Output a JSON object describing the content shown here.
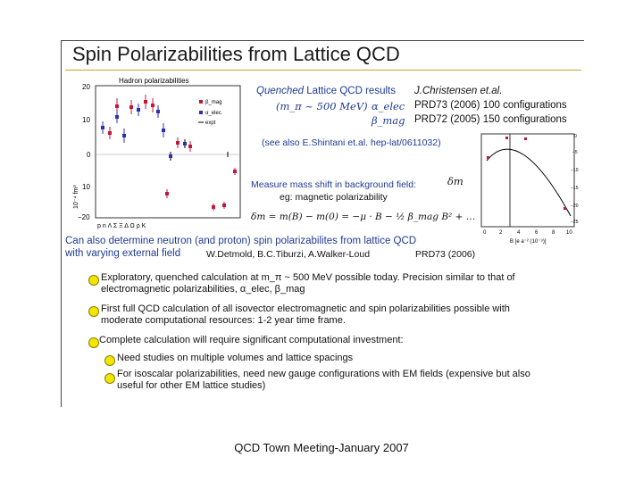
{
  "slide": {
    "title": "Spin Polarizabilities from Lattice QCD",
    "footer": "QCD Town Meeting-January 2007"
  },
  "left_chart": {
    "title": "Hadron polarizabilities",
    "y_axis_label": "10⁻⁴ fm³",
    "y_ticks": [
      "20",
      "10",
      "0",
      "10",
      "−20"
    ],
    "x_tick_text": "p  n  Λ  Σ  Ξ  Δ  Ω  ρ  K",
    "legend": [
      "β_mag",
      "α_elec",
      "expt"
    ]
  },
  "quenched": {
    "heading_italic": "Quenched",
    "heading_rest": " Lattice QCD results",
    "mass": "(m_π ~ 500 MeV)",
    "alpha": "α_elec",
    "beta": "β_mag",
    "ref1": "J.Christensen et.al.",
    "ref2": "PRD73 (2006) 100 configurations",
    "ref3": "PRD72 (2005) 150 configurations",
    "see_also": "(see also E.Shintani et.al. hep-lat/0611032)"
  },
  "background_field": {
    "line1": "Measure mass shift in background field:",
    "line2": "eg: magnetic polarizability",
    "equation": "δm = m(B) − m(0) = −μ · B − ½ β_mag B² + …",
    "delta_m": "δm"
  },
  "right_chart": {
    "x_label": "B [e a⁻² (10⁻⁹)]",
    "x_ticks": [
      "0",
      "2",
      "4",
      "6",
      "8",
      "10"
    ],
    "y_ticks": [
      "0",
      "−5",
      "−10",
      "−15",
      "−20",
      "−25"
    ]
  },
  "neutron": {
    "line1": "Can also determine neutron (and proton) spin polarizabilites from lattice QCD",
    "line2": "with varying external field",
    "authors": "W.Detmold, B.C.Tiburzi, A.Walker-Loud",
    "ref": "PRD73 (2006)"
  },
  "bullets": [
    {
      "line1": "Exploratory, quenched calculation at m_π ~ 500 MeV possible today. Precision similar to that of",
      "line2": "electromagnetic polarizabilities, α_elec, β_mag"
    },
    {
      "line1": "First full QCD calculation of all isovector electromagnetic and spin polarizabilities possible with",
      "line2": "moderate computational resources: 1-2 year time frame."
    },
    {
      "line1": "Complete calculation will require significant computational investment:",
      "line2": ""
    }
  ],
  "sub_bullets": [
    {
      "line1": "Need studies on multiple volumes and lattice spacings",
      "line2": ""
    },
    {
      "line1": "For isoscalar polarizabilities, need new gauge configurations with EM fields (expensive but also",
      "line2": "useful for other EM lattice studies)"
    }
  ]
}
